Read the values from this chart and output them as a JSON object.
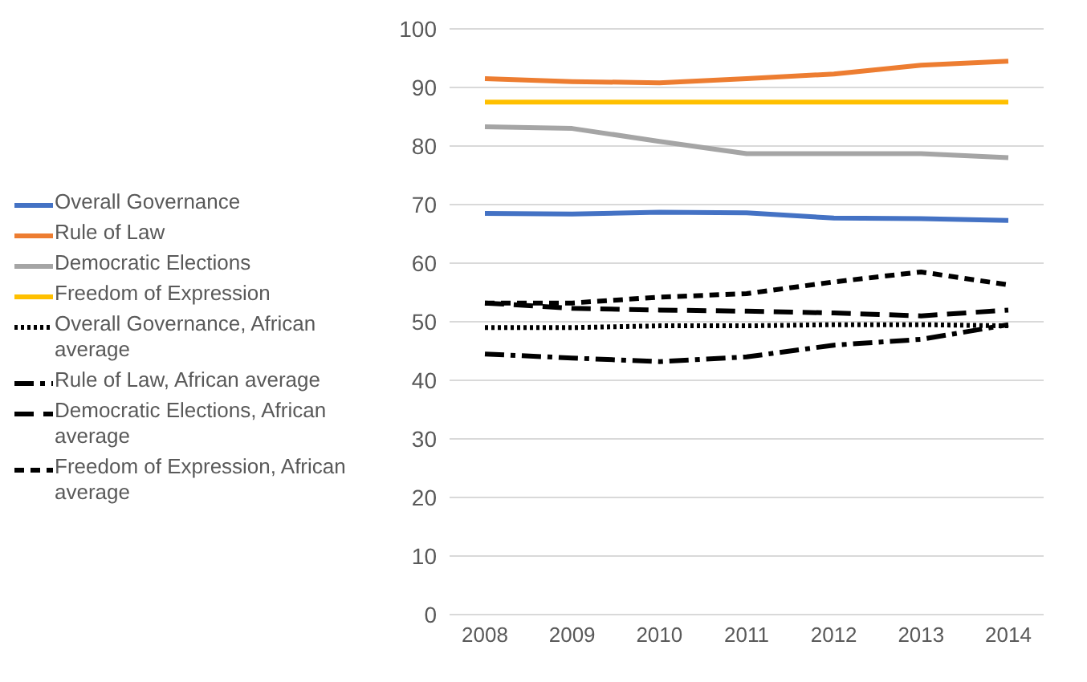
{
  "chart_data": {
    "type": "line",
    "categories": [
      "2008",
      "2009",
      "2010",
      "2011",
      "2012",
      "2013",
      "2014"
    ],
    "ylim": [
      0,
      100
    ],
    "yticks": [
      0,
      10,
      20,
      30,
      40,
      50,
      60,
      70,
      80,
      90,
      100
    ],
    "grid": "y",
    "legend": "left",
    "marker": "none",
    "series": [
      {
        "name": "Overall Governance",
        "color": "#4472c4",
        "line_style": "solid",
        "values": [
          68.5,
          68.4,
          68.7,
          68.6,
          67.7,
          67.6,
          67.3
        ]
      },
      {
        "name": "Rule of Law",
        "color": "#ed7d31",
        "line_style": "solid",
        "values": [
          91.5,
          91.0,
          90.8,
          91.5,
          92.3,
          93.8,
          94.5
        ]
      },
      {
        "name": "Democratic Elections",
        "color": "#a5a5a5",
        "line_style": "solid",
        "values": [
          83.3,
          83.0,
          80.8,
          78.7,
          78.7,
          78.7,
          78.0
        ]
      },
      {
        "name": "Freedom of Expression",
        "color": "#ffc000",
        "line_style": "solid",
        "values": [
          87.5,
          87.5,
          87.5,
          87.5,
          87.5,
          87.5,
          87.5
        ]
      },
      {
        "name": "Overall Governance, African average",
        "color": "#000000",
        "line_style": "dotted",
        "values": [
          49.0,
          49.0,
          49.3,
          49.3,
          49.5,
          49.5,
          49.3
        ]
      },
      {
        "name": "Rule of Law, African average",
        "color": "#000000",
        "line_style": "dashed",
        "values": [
          44.5,
          43.8,
          43.2,
          44.0,
          46.0,
          47.0,
          49.5
        ]
      },
      {
        "name": "Democratic Elections, African average",
        "color": "#000000",
        "line_style": "dashed",
        "values": [
          53.2,
          52.3,
          52.0,
          51.8,
          51.5,
          51.0,
          52.0
        ]
      },
      {
        "name": "Freedom of Expression, African average",
        "color": "#000000",
        "line_style": "dashed",
        "values": [
          53.2,
          53.2,
          54.2,
          54.8,
          56.8,
          58.5,
          56.3
        ]
      }
    ]
  }
}
